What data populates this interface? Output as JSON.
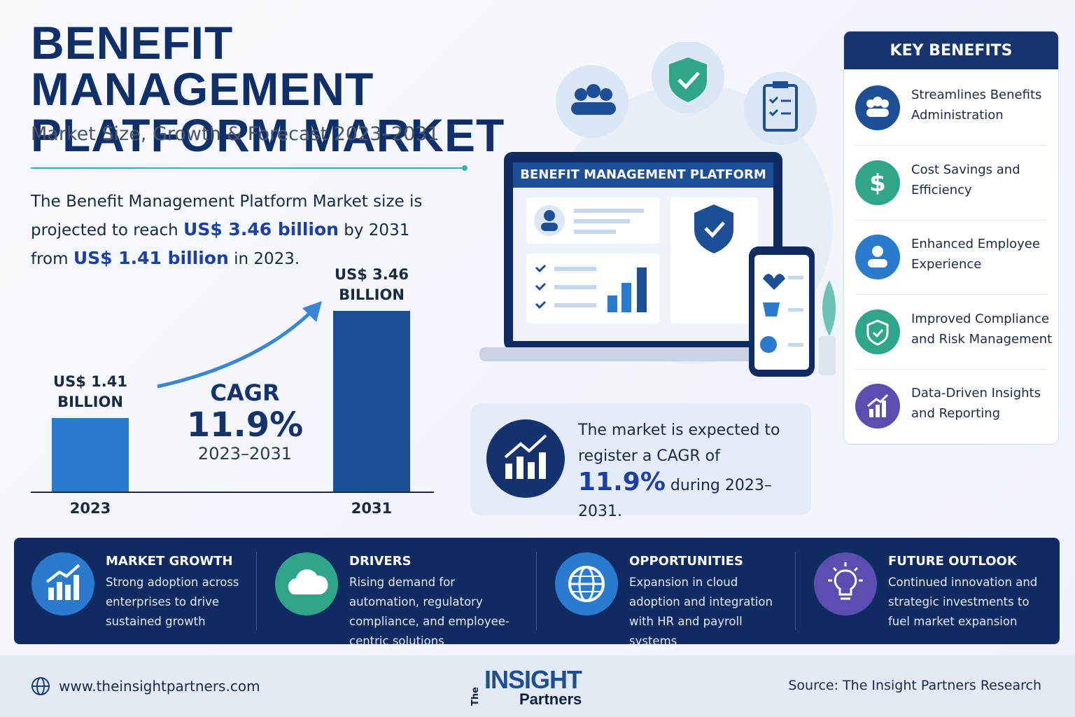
{
  "header": {
    "title": "BENEFIT MANAGEMENT PLATFORM MARKET",
    "subtitle": "Market Size, Growth & Forecast 2023–2031"
  },
  "intro": {
    "parts": [
      "The Benefit Management Platform Market size is projected to reach",
      "US$ 3.46 billion",
      "by 2031 from",
      "US$ 1.41 billion",
      "in 2023."
    ]
  },
  "chart_data": {
    "type": "bar",
    "categories": [
      "2023",
      "2031"
    ],
    "values": [
      1.41,
      3.46
    ],
    "value_labels": [
      "US$ 1.41 BILLION",
      "US$ 3.46 BILLION"
    ],
    "colors": [
      "#2a7bd0",
      "#1c4f96"
    ],
    "annotation": {
      "label": "CAGR",
      "value": "11.9%",
      "period": "2023–2031"
    }
  },
  "dashboard": {
    "title": "BENEFIT MANAGEMENT PLATFORM"
  },
  "cagr_note": {
    "parts": [
      "The market is expected to register a CAGR of",
      "11.9%",
      "during 2023–2031."
    ]
  },
  "key_benefits": {
    "title": "KEY BENEFITS",
    "items": [
      "Streamlines Benefits Administration",
      "Cost Savings and Efficiency",
      "Enhanced Employee Experience",
      "Improved Compliance and Risk Management",
      "Data-Driven Insights and Reporting"
    ]
  },
  "highlights": [
    {
      "title": "MARKET GROWTH",
      "text": "Strong adoption across enterprises to drive sustained growth"
    },
    {
      "title": "DRIVERS",
      "text": "Rising demand for automation, regulatory compliance, and employee-centric solutions"
    },
    {
      "title": "OPPORTUNITIES",
      "text": "Expansion in cloud adoption and integration with HR and payroll systems"
    },
    {
      "title": "FUTURE OUTLOOK",
      "text": "Continued innovation and strategic investments to fuel market expansion"
    }
  ],
  "footer": {
    "website": "www.theinsightpartners.com",
    "logo_the": "The",
    "logo_main": "INSIGHT",
    "logo_sub": "Partners",
    "source": "Source: The Insight Partners Research"
  }
}
